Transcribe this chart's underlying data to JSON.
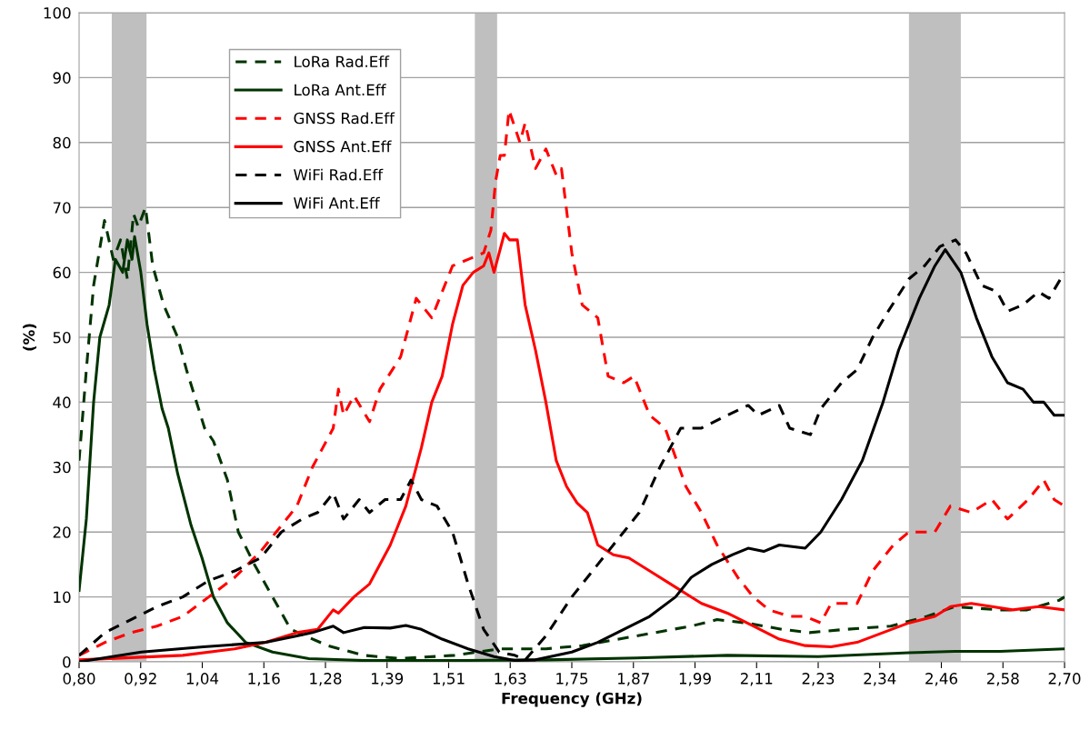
{
  "chart_data": {
    "type": "line",
    "xlabel": "Frequency (GHz)",
    "ylabel": "(%)",
    "xlim": [
      0.8,
      2.7
    ],
    "xticks": [
      {
        "value": 0.8,
        "label": "0,80"
      },
      {
        "value": 0.91875,
        "label": "0,92"
      },
      {
        "value": 1.0375,
        "label": "1,04"
      },
      {
        "value": 1.15625,
        "label": "1,16"
      },
      {
        "value": 1.275,
        "label": "1,28"
      },
      {
        "value": 1.39375,
        "label": "1,39"
      },
      {
        "value": 1.5125,
        "label": "1,51"
      },
      {
        "value": 1.63125,
        "label": "1,63"
      },
      {
        "value": 1.75,
        "label": "1,75"
      },
      {
        "value": 1.86875,
        "label": "1,87"
      },
      {
        "value": 1.9875,
        "label": "1,99"
      },
      {
        "value": 2.10625,
        "label": "2,11"
      },
      {
        "value": 2.225,
        "label": "2,23"
      },
      {
        "value": 2.34375,
        "label": "2,34"
      },
      {
        "value": 2.4625,
        "label": "2,46"
      },
      {
        "value": 2.58125,
        "label": "2,58"
      },
      {
        "value": 2.7,
        "label": "2,70"
      }
    ],
    "ylim": [
      0,
      100
    ],
    "yticks": [
      0,
      10,
      20,
      30,
      40,
      50,
      60,
      70,
      80,
      90,
      100
    ],
    "grid": "y",
    "legend": "top left",
    "bands": [
      {
        "axis": "x",
        "from": 0.863,
        "to": 0.93,
        "color": "#bfbfbf"
      },
      {
        "axis": "x",
        "from": 1.563,
        "to": 1.606,
        "color": "#bfbfbf"
      },
      {
        "axis": "x",
        "from": 2.4,
        "to": 2.5,
        "color": "#bfbfbf"
      }
    ],
    "series": [
      {
        "name": "LoRa Rad.Eff",
        "color": "#003300",
        "line_style": "dashed",
        "x": [
          0.8,
          0.814,
          0.828,
          0.849,
          0.866,
          0.88,
          0.893,
          0.905,
          0.914,
          0.928,
          0.942,
          0.963,
          0.99,
          1.007,
          1.042,
          1.059,
          1.086,
          1.107,
          1.138,
          1.173,
          1.208,
          1.279,
          1.349,
          1.419,
          1.524,
          1.612,
          1.7,
          1.77,
          1.875,
          1.98,
          2.03,
          2.085,
          2.155,
          2.208,
          2.278,
          2.365,
          2.435,
          2.488,
          2.576,
          2.628,
          2.69,
          2.7
        ],
        "values": [
          31,
          45,
          58,
          68,
          62,
          65,
          59,
          69,
          67,
          70,
          61,
          55,
          50,
          45,
          36,
          34,
          28,
          20,
          15,
          10,
          5,
          2.5,
          1,
          0.5,
          1,
          2,
          2,
          2.5,
          4,
          5.5,
          6.5,
          6,
          5,
          4.5,
          5,
          5.5,
          7,
          8.5,
          8,
          8,
          9.5,
          10
        ]
      },
      {
        "name": "LoRa Ant.Eff",
        "color": "#003300",
        "line_style": "solid",
        "x": [
          0.8,
          0.814,
          0.828,
          0.84,
          0.858,
          0.87,
          0.884,
          0.893,
          0.902,
          0.907,
          0.919,
          0.931,
          0.945,
          0.96,
          0.972,
          0.99,
          1.016,
          1.037,
          1.059,
          1.086,
          1.121,
          1.173,
          1.243,
          1.349,
          1.524,
          1.7,
          1.875,
          2.05,
          2.225,
          2.4,
          2.488,
          2.576,
          2.7
        ],
        "values": [
          11,
          22,
          40,
          50,
          55,
          62,
          60,
          65,
          62,
          65.5,
          60,
          52,
          45,
          39,
          36,
          29,
          21,
          16,
          10,
          6,
          3,
          1.5,
          0.5,
          0.2,
          0.2,
          0.3,
          0.6,
          1,
          0.8,
          1.4,
          1.6,
          1.6,
          2
        ]
      },
      {
        "name": "GNSS Rad.Eff",
        "color": "#ff0000",
        "line_style": "dashed",
        "x": [
          0.8,
          0.85,
          0.9,
          0.95,
          1.0,
          1.05,
          1.1,
          1.15,
          1.18,
          1.22,
          1.25,
          1.27,
          1.29,
          1.3,
          1.31,
          1.33,
          1.36,
          1.38,
          1.42,
          1.45,
          1.48,
          1.5,
          1.52,
          1.55,
          1.58,
          1.594,
          1.603,
          1.612,
          1.62,
          1.629,
          1.65,
          1.66,
          1.68,
          1.7,
          1.72,
          1.73,
          1.75,
          1.77,
          1.8,
          1.82,
          1.85,
          1.87,
          1.9,
          1.93,
          1.97,
          2.0,
          2.03,
          2.07,
          2.1,
          2.13,
          2.17,
          2.2,
          2.23,
          2.25,
          2.3,
          2.33,
          2.37,
          2.4,
          2.45,
          2.48,
          2.52,
          2.56,
          2.59,
          2.63,
          2.66,
          2.68,
          2.7
        ],
        "values": [
          1,
          3,
          4.5,
          5.5,
          7,
          10,
          13,
          17,
          20,
          24,
          30,
          33,
          36,
          42,
          38,
          41,
          37,
          42,
          47,
          56,
          53,
          57,
          61,
          62,
          63,
          66.5,
          74,
          78,
          78,
          85,
          80,
          83,
          76,
          79,
          75,
          76,
          63,
          55,
          53,
          44,
          43,
          44,
          38,
          36,
          27,
          23,
          18,
          13,
          10,
          8,
          7,
          7,
          6,
          9,
          9,
          14,
          18,
          20,
          20,
          24,
          23,
          25,
          22,
          25,
          28,
          25,
          24
        ]
      },
      {
        "name": "GNSS Ant.Eff",
        "color": "#ff0000",
        "line_style": "solid",
        "x": [
          0.8,
          1.0,
          1.1,
          1.16,
          1.22,
          1.26,
          1.29,
          1.3,
          1.33,
          1.36,
          1.4,
          1.43,
          1.46,
          1.48,
          1.5,
          1.52,
          1.54,
          1.56,
          1.58,
          1.59,
          1.6,
          1.62,
          1.63,
          1.645,
          1.66,
          1.68,
          1.7,
          1.72,
          1.74,
          1.76,
          1.78,
          1.8,
          1.83,
          1.86,
          1.9,
          1.95,
          2.0,
          2.05,
          2.1,
          2.15,
          2.2,
          2.25,
          2.3,
          2.35,
          2.4,
          2.45,
          2.48,
          2.52,
          2.56,
          2.6,
          2.65,
          2.7
        ],
        "values": [
          0.3,
          1,
          2,
          3,
          4.5,
          5,
          8,
          7.5,
          10,
          12,
          18,
          24,
          33,
          40,
          44,
          52,
          58,
          60,
          61,
          63,
          60,
          66,
          65,
          65,
          55,
          48,
          40,
          31,
          27,
          24.5,
          23,
          18,
          16.5,
          16,
          14,
          11.5,
          9,
          7.5,
          5.5,
          3.5,
          2.5,
          2.3,
          3,
          4.5,
          6,
          7,
          8.5,
          9,
          8.5,
          8,
          8.5,
          8
        ]
      },
      {
        "name": "WiFi Rad.Eff",
        "color": "#000000",
        "line_style": "dashed",
        "x": [
          0.8,
          0.85,
          0.9,
          0.95,
          1.0,
          1.05,
          1.1,
          1.15,
          1.19,
          1.23,
          1.26,
          1.29,
          1.31,
          1.34,
          1.36,
          1.39,
          1.42,
          1.44,
          1.46,
          1.49,
          1.52,
          1.55,
          1.58,
          1.61,
          1.64,
          1.66,
          1.7,
          1.75,
          1.8,
          1.85,
          1.88,
          1.92,
          1.96,
          2.0,
          2.05,
          2.09,
          2.11,
          2.15,
          2.17,
          2.21,
          2.23,
          2.27,
          2.3,
          2.33,
          2.36,
          2.4,
          2.43,
          2.46,
          2.49,
          2.51,
          2.54,
          2.57,
          2.59,
          2.62,
          2.65,
          2.67,
          2.7
        ],
        "values": [
          1,
          4.5,
          6.5,
          8.5,
          10,
          12.5,
          14,
          16,
          20,
          22,
          23,
          26,
          22,
          25,
          23,
          25,
          25,
          28,
          25,
          24,
          20,
          12,
          5,
          1.5,
          1,
          0.3,
          4,
          10,
          15,
          20,
          23,
          30,
          36,
          36,
          38,
          39.5,
          38,
          39.5,
          36,
          35,
          39,
          43,
          45,
          50,
          54,
          59,
          61,
          64,
          65,
          63,
          58,
          57,
          54,
          55,
          57,
          56,
          60
        ]
      },
      {
        "name": "WiFi Ant.Eff",
        "color": "#000000",
        "line_style": "solid",
        "x": [
          0.8,
          0.92,
          1.04,
          1.16,
          1.22,
          1.25,
          1.29,
          1.31,
          1.35,
          1.4,
          1.43,
          1.46,
          1.5,
          1.55,
          1.6,
          1.64,
          1.68,
          1.75,
          1.8,
          1.85,
          1.9,
          1.95,
          1.98,
          2.02,
          2.06,
          2.09,
          2.12,
          2.15,
          2.2,
          2.23,
          2.27,
          2.31,
          2.35,
          2.38,
          2.42,
          2.45,
          2.47,
          2.5,
          2.53,
          2.56,
          2.59,
          2.62,
          2.64,
          2.66,
          2.68,
          2.7
        ],
        "values": [
          0,
          1.5,
          2.3,
          3,
          4,
          4.5,
          5.5,
          4.5,
          5.3,
          5.2,
          5.6,
          5,
          3.5,
          2,
          0.8,
          0.2,
          0.3,
          1.5,
          3,
          5,
          7,
          10,
          13,
          15,
          16.5,
          17.5,
          17,
          18,
          17.5,
          20,
          25,
          31,
          40,
          48,
          56,
          61,
          63.5,
          60,
          53,
          47,
          43,
          42,
          40,
          40,
          38,
          38
        ]
      }
    ]
  }
}
